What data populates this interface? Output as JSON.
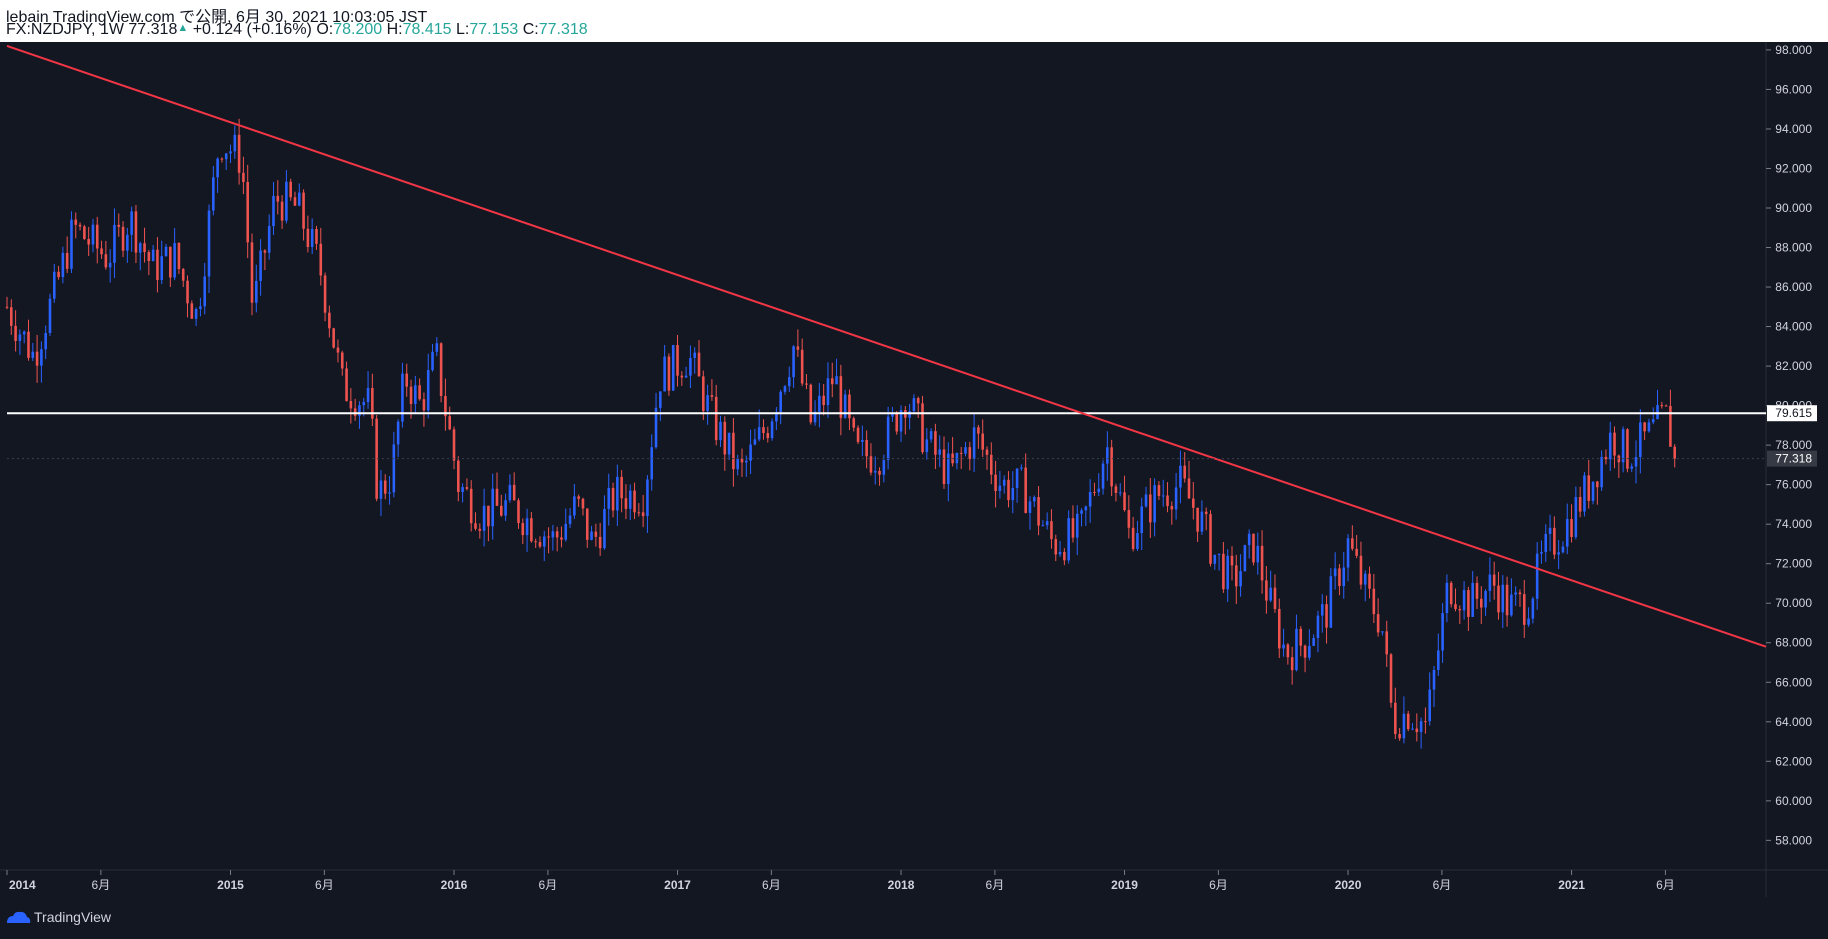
{
  "header": {
    "publisher": "lebain TradingView.com で公開, 6月 30, 2021 10:03:05 JST",
    "symbol": "FX:NZDJPY, 1W",
    "last": "77.318",
    "change": "+0.124 (+0.16%)",
    "o_label": "O:",
    "o_val": "78.200",
    "h_label": "H:",
    "h_val": "78.415",
    "l_label": "L:",
    "l_val": "77.153",
    "c_label": "C:",
    "c_val": "77.318"
  },
  "footer": {
    "brand": "TradingView"
  },
  "colors": {
    "bg": "#131722",
    "up": "#2962ff",
    "down": "#ef5350",
    "trendline": "#f23645",
    "hline": "#ffffff",
    "axis_text": "#d1d4dc",
    "border": "#2a2e39"
  },
  "chart_data": {
    "type": "candlestick",
    "title": "FX:NZDJPY, 1W",
    "ylim": [
      56.5,
      98.4
    ],
    "xlim": [
      2014.0,
      2021.87
    ],
    "y_ticks": [
      "98.000",
      "96.000",
      "94.000",
      "92.000",
      "90.000",
      "88.000",
      "86.000",
      "84.000",
      "82.000",
      "80.000",
      "78.000",
      "76.000",
      "74.000",
      "72.000",
      "70.000",
      "68.000",
      "66.000",
      "64.000",
      "62.000",
      "60.000",
      "58.000"
    ],
    "x_ticks": [
      {
        "label": "2014",
        "t": 2014.0,
        "bold": true
      },
      {
        "label": "6月",
        "t": 2014.42,
        "bold": false
      },
      {
        "label": "2015",
        "t": 2015.0,
        "bold": true
      },
      {
        "label": "6月",
        "t": 2015.42,
        "bold": false
      },
      {
        "label": "2016",
        "t": 2016.0,
        "bold": true
      },
      {
        "label": "6月",
        "t": 2016.42,
        "bold": false
      },
      {
        "label": "2017",
        "t": 2017.0,
        "bold": true
      },
      {
        "label": "6月",
        "t": 2017.42,
        "bold": false
      },
      {
        "label": "2018",
        "t": 2018.0,
        "bold": true
      },
      {
        "label": "6月",
        "t": 2018.42,
        "bold": false
      },
      {
        "label": "2019",
        "t": 2019.0,
        "bold": true
      },
      {
        "label": "6月",
        "t": 2019.42,
        "bold": false
      },
      {
        "label": "2020",
        "t": 2020.0,
        "bold": true
      },
      {
        "label": "6月",
        "t": 2020.42,
        "bold": false
      },
      {
        "label": "2021",
        "t": 2021.0,
        "bold": true
      },
      {
        "label": "6月",
        "t": 2021.42,
        "bold": false
      }
    ],
    "horizontal_line": {
      "value": 79.615,
      "label": "79.615"
    },
    "price_label": {
      "value": 77.318,
      "label": "77.318"
    },
    "trendline": {
      "x1": 2014.0,
      "y1": 98.2,
      "x2": 2021.87,
      "y2": 67.8
    },
    "anchors": [
      [
        2014.0,
        85.0
      ],
      [
        2014.12,
        82.5
      ],
      [
        2014.22,
        86.0
      ],
      [
        2014.3,
        89.0
      ],
      [
        2014.45,
        87.5
      ],
      [
        2014.55,
        89.5
      ],
      [
        2014.65,
        87.0
      ],
      [
        2014.75,
        87.5
      ],
      [
        2014.85,
        84.5
      ],
      [
        2014.95,
        93.5
      ],
      [
        2015.05,
        92.5
      ],
      [
        2015.1,
        84.8
      ],
      [
        2015.2,
        90.5
      ],
      [
        2015.3,
        90.0
      ],
      [
        2015.4,
        87.0
      ],
      [
        2015.5,
        81.0
      ],
      [
        2015.62,
        80.0
      ],
      [
        2015.66,
        75.5
      ],
      [
        2015.72,
        76.5
      ],
      [
        2015.78,
        81.5
      ],
      [
        2015.85,
        80.0
      ],
      [
        2015.92,
        82.5
      ],
      [
        2016.02,
        76.0
      ],
      [
        2016.12,
        74.5
      ],
      [
        2016.25,
        75.0
      ],
      [
        2016.35,
        74.0
      ],
      [
        2016.45,
        73.2
      ],
      [
        2016.55,
        75.0
      ],
      [
        2016.62,
        73.0
      ],
      [
        2016.72,
        75.5
      ],
      [
        2016.85,
        75.5
      ],
      [
        2016.92,
        81.5
      ],
      [
        2017.05,
        82.5
      ],
      [
        2017.15,
        79.5
      ],
      [
        2017.28,
        76.5
      ],
      [
        2017.4,
        79.0
      ],
      [
        2017.52,
        83.0
      ],
      [
        2017.6,
        79.0
      ],
      [
        2017.7,
        81.5
      ],
      [
        2017.8,
        77.5
      ],
      [
        2017.9,
        77.5
      ],
      [
        2018.02,
        80.5
      ],
      [
        2018.12,
        78.0
      ],
      [
        2018.22,
        76.5
      ],
      [
        2018.33,
        78.5
      ],
      [
        2018.45,
        76.0
      ],
      [
        2018.55,
        75.8
      ],
      [
        2018.68,
        73.0
      ],
      [
        2018.8,
        73.5
      ],
      [
        2018.92,
        78.0
      ],
      [
        2019.02,
        73.5
      ],
      [
        2019.15,
        75.5
      ],
      [
        2019.25,
        76.0
      ],
      [
        2019.33,
        74.5
      ],
      [
        2019.4,
        72.5
      ],
      [
        2019.48,
        71.0
      ],
      [
        2019.58,
        73.0
      ],
      [
        2019.65,
        70.0
      ],
      [
        2019.72,
        67.5
      ],
      [
        2019.8,
        68.0
      ],
      [
        2019.9,
        69.5
      ],
      [
        2020.0,
        73.0
      ],
      [
        2020.08,
        70.5
      ],
      [
        2020.15,
        69.0
      ],
      [
        2020.2,
        64.0
      ],
      [
        2020.27,
        64.5
      ],
      [
        2020.35,
        63.8
      ],
      [
        2020.45,
        71.0
      ],
      [
        2020.55,
        70.0
      ],
      [
        2020.65,
        71.0
      ],
      [
        2020.72,
        69.8
      ],
      [
        2020.8,
        70.0
      ],
      [
        2020.88,
        72.5
      ],
      [
        2020.98,
        74.0
      ],
      [
        2021.08,
        76.0
      ],
      [
        2021.18,
        78.5
      ],
      [
        2021.25,
        77.5
      ],
      [
        2021.35,
        78.5
      ],
      [
        2021.42,
        79.5
      ],
      [
        2021.47,
        77.318
      ]
    ]
  }
}
